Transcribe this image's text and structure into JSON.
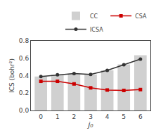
{
  "chart_data": {
    "type": "bar",
    "x": [
      0,
      1,
      2,
      3,
      4,
      5,
      6
    ],
    "series": [
      {
        "name": "CC",
        "type": "bar",
        "color": "#d0d0d0",
        "values": [
          0.39,
          0.41,
          0.425,
          0.415,
          0.46,
          0.53,
          0.635
        ]
      },
      {
        "name": "CSA",
        "type": "line",
        "color": "#cc0000",
        "marker": "square",
        "values": [
          0.335,
          0.335,
          0.305,
          0.26,
          0.235,
          0.23,
          0.24
        ]
      },
      {
        "name": "ICSA",
        "type": "line",
        "color": "#333333",
        "marker": "circle",
        "values": [
          0.39,
          0.41,
          0.425,
          0.415,
          0.46,
          0.525,
          0.59
        ]
      }
    ],
    "x_label": "j₀",
    "y_label": "ICS (bohr²)",
    "xlim": [
      -0.6,
      6.6
    ],
    "xticks": [
      0,
      1,
      2,
      3,
      4,
      5,
      6
    ],
    "ylim": [
      0.0,
      0.8
    ],
    "yticks": [
      {
        "value": 0,
        "label": "0.0"
      },
      0.2,
      0.4,
      0.6,
      0.8
    ],
    "legend": "upper right",
    "grid": false
  }
}
